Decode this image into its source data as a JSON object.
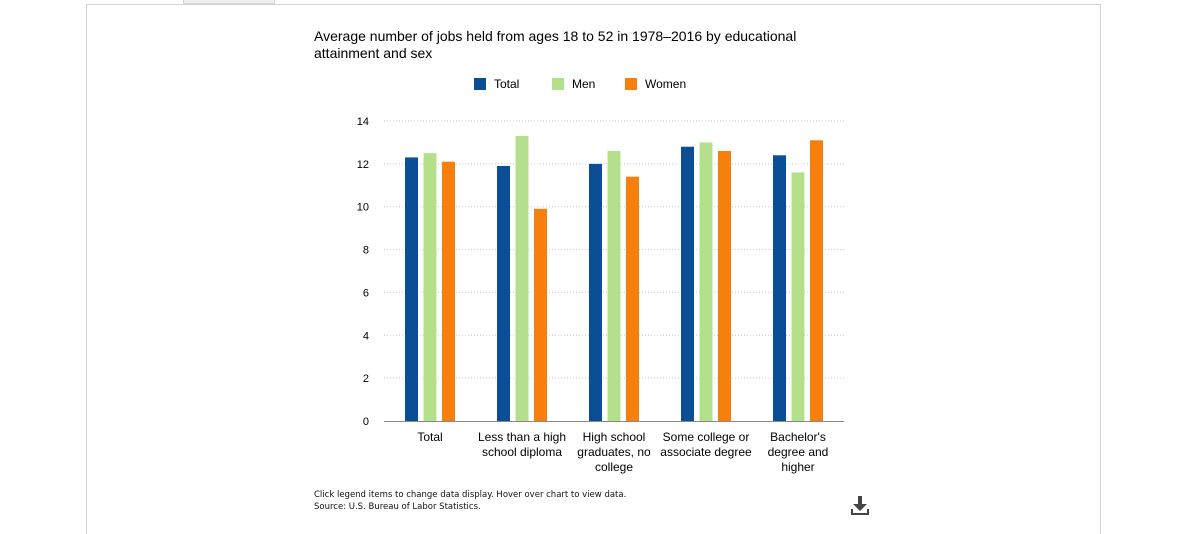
{
  "chart_data": {
    "type": "bar",
    "title": "Average number of jobs held from ages 18 to 52 in 1978–2016 by educational attainment and sex",
    "categories": [
      "Total",
      "Less than a high school diploma",
      "High school graduates, no college",
      "Some college or associate degree",
      "Bachelor's degree and higher"
    ],
    "series": [
      {
        "name": "Total",
        "color": "#0b4e96",
        "values": [
          12.3,
          11.9,
          12.0,
          12.8,
          12.4
        ]
      },
      {
        "name": "Men",
        "color": "#b4e08c",
        "values": [
          12.5,
          13.3,
          12.6,
          13.0,
          11.6
        ]
      },
      {
        "name": "Women",
        "color": "#f77f0e",
        "values": [
          12.1,
          9.9,
          11.4,
          12.6,
          13.1
        ]
      }
    ],
    "ylim": [
      0,
      14
    ],
    "yticks": [
      0,
      2,
      4,
      6,
      8,
      10,
      12,
      14
    ],
    "grid": true,
    "legend_placement": "top"
  },
  "footnote": {
    "line1": "Click legend items to change data display. Hover over chart to view data.",
    "line2": "Source: U.S. Bureau of Labor Statistics."
  },
  "icons": {
    "download": "download-icon"
  }
}
